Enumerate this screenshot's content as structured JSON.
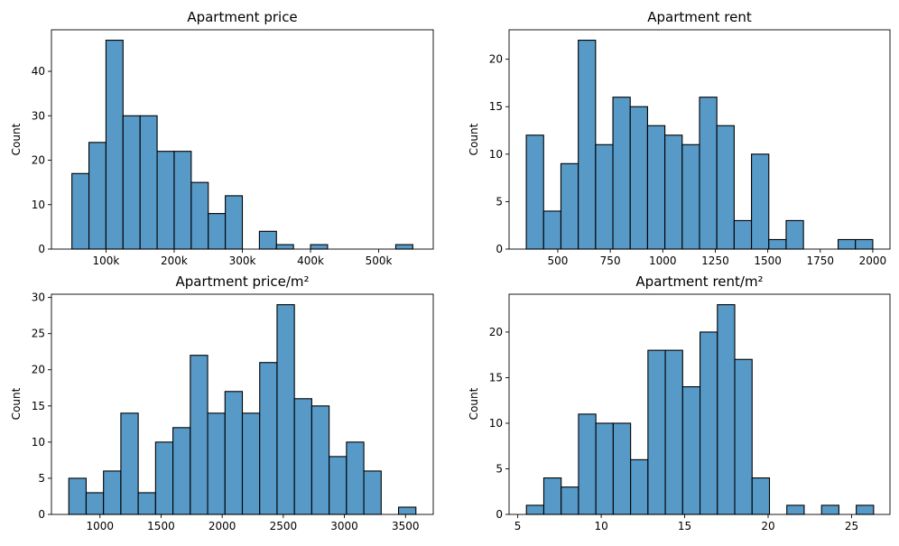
{
  "chart_data": [
    {
      "type": "bar",
      "title": "Apartment price",
      "xlabel": "",
      "ylabel": "Count",
      "xlim": [
        20000,
        580000
      ],
      "ylim": [
        0,
        49.35
      ],
      "xticks": [
        100000,
        200000,
        300000,
        400000,
        500000
      ],
      "xtick_labels": [
        "100k",
        "200k",
        "300k",
        "400k",
        "500k"
      ],
      "yticks": [
        0,
        10,
        20,
        30,
        40
      ],
      "bar_color": "#5799c7",
      "bins": [
        {
          "x0": 50000,
          "x1": 75000,
          "count": 17
        },
        {
          "x0": 75000,
          "x1": 100000,
          "count": 24
        },
        {
          "x0": 100000,
          "x1": 125000,
          "count": 47
        },
        {
          "x0": 125000,
          "x1": 150000,
          "count": 30
        },
        {
          "x0": 150000,
          "x1": 175000,
          "count": 30
        },
        {
          "x0": 175000,
          "x1": 200000,
          "count": 22
        },
        {
          "x0": 200000,
          "x1": 225000,
          "count": 22
        },
        {
          "x0": 225000,
          "x1": 250000,
          "count": 15
        },
        {
          "x0": 250000,
          "x1": 275000,
          "count": 8
        },
        {
          "x0": 275000,
          "x1": 300000,
          "count": 12
        },
        {
          "x0": 300000,
          "x1": 325000,
          "count": 0
        },
        {
          "x0": 325000,
          "x1": 350000,
          "count": 4
        },
        {
          "x0": 350000,
          "x1": 375000,
          "count": 1
        },
        {
          "x0": 375000,
          "x1": 400000,
          "count": 0
        },
        {
          "x0": 400000,
          "x1": 425000,
          "count": 1
        },
        {
          "x0": 425000,
          "x1": 450000,
          "count": 0
        },
        {
          "x0": 450000,
          "x1": 475000,
          "count": 0
        },
        {
          "x0": 475000,
          "x1": 500000,
          "count": 0
        },
        {
          "x0": 500000,
          "x1": 525000,
          "count": 0
        },
        {
          "x0": 525000,
          "x1": 550000,
          "count": 1
        }
      ]
    },
    {
      "type": "bar",
      "title": "Apartment rent",
      "xlabel": "",
      "ylabel": "Count",
      "xlim": [
        268,
        2082
      ],
      "ylim": [
        0,
        23.1
      ],
      "xticks": [
        500,
        750,
        1000,
        1250,
        1500,
        1750,
        2000
      ],
      "xtick_labels": [
        "500",
        "750",
        "1000",
        "1250",
        "1500",
        "1750",
        "2000"
      ],
      "yticks": [
        0,
        5,
        10,
        15,
        20
      ],
      "bar_color": "#5799c7",
      "bins": [
        {
          "x0": 350,
          "x1": 432.5,
          "count": 12
        },
        {
          "x0": 432.5,
          "x1": 515,
          "count": 4
        },
        {
          "x0": 515,
          "x1": 597.5,
          "count": 9
        },
        {
          "x0": 597.5,
          "x1": 680,
          "count": 22
        },
        {
          "x0": 680,
          "x1": 762.5,
          "count": 11
        },
        {
          "x0": 762.5,
          "x1": 845,
          "count": 16
        },
        {
          "x0": 845,
          "x1": 927.5,
          "count": 15
        },
        {
          "x0": 927.5,
          "x1": 1010,
          "count": 13
        },
        {
          "x0": 1010,
          "x1": 1092.5,
          "count": 12
        },
        {
          "x0": 1092.5,
          "x1": 1175,
          "count": 11
        },
        {
          "x0": 1175,
          "x1": 1257.5,
          "count": 16
        },
        {
          "x0": 1257.5,
          "x1": 1340,
          "count": 13
        },
        {
          "x0": 1340,
          "x1": 1422.5,
          "count": 3
        },
        {
          "x0": 1422.5,
          "x1": 1505,
          "count": 10
        },
        {
          "x0": 1505,
          "x1": 1587.5,
          "count": 1
        },
        {
          "x0": 1587.5,
          "x1": 1670,
          "count": 3
        },
        {
          "x0": 1670,
          "x1": 1752.5,
          "count": 0
        },
        {
          "x0": 1752.5,
          "x1": 1835,
          "count": 0
        },
        {
          "x0": 1835,
          "x1": 1917.5,
          "count": 1
        },
        {
          "x0": 1917.5,
          "x1": 2000,
          "count": 1
        }
      ]
    },
    {
      "type": "bar",
      "title": "Apartment price/m²",
      "xlabel": "",
      "ylabel": "Count",
      "xlim": [
        603,
        3727
      ],
      "ylim": [
        0,
        30.45
      ],
      "xticks": [
        1000,
        1500,
        2000,
        2500,
        3000,
        3500
      ],
      "xtick_labels": [
        "1000",
        "1500",
        "2000",
        "2500",
        "3000",
        "3500"
      ],
      "yticks": [
        0,
        5,
        10,
        15,
        20,
        25,
        30
      ],
      "bar_color": "#5799c7",
      "bins": [
        {
          "x0": 745,
          "x1": 887,
          "count": 5
        },
        {
          "x0": 887,
          "x1": 1029,
          "count": 3
        },
        {
          "x0": 1029,
          "x1": 1171,
          "count": 6
        },
        {
          "x0": 1171,
          "x1": 1313,
          "count": 14
        },
        {
          "x0": 1313,
          "x1": 1455,
          "count": 3
        },
        {
          "x0": 1455,
          "x1": 1597,
          "count": 10
        },
        {
          "x0": 1597,
          "x1": 1739,
          "count": 12
        },
        {
          "x0": 1739,
          "x1": 1881,
          "count": 22
        },
        {
          "x0": 1881,
          "x1": 2023,
          "count": 14
        },
        {
          "x0": 2023,
          "x1": 2165,
          "count": 17
        },
        {
          "x0": 2165,
          "x1": 2307,
          "count": 14
        },
        {
          "x0": 2307,
          "x1": 2449,
          "count": 21
        },
        {
          "x0": 2449,
          "x1": 2591,
          "count": 29
        },
        {
          "x0": 2591,
          "x1": 2733,
          "count": 16
        },
        {
          "x0": 2733,
          "x1": 2875,
          "count": 15
        },
        {
          "x0": 2875,
          "x1": 3017,
          "count": 8
        },
        {
          "x0": 3017,
          "x1": 3159,
          "count": 10
        },
        {
          "x0": 3159,
          "x1": 3301,
          "count": 6
        },
        {
          "x0": 3301,
          "x1": 3443,
          "count": 0
        },
        {
          "x0": 3443,
          "x1": 3585,
          "count": 1
        }
      ]
    },
    {
      "type": "bar",
      "title": "Apartment rent/m²",
      "xlabel": "",
      "ylabel": "Count",
      "xlim": [
        4.48,
        27.3
      ],
      "ylim": [
        0,
        24.15
      ],
      "xticks": [
        5,
        10,
        15,
        20,
        25
      ],
      "xtick_labels": [
        "5",
        "10",
        "15",
        "20",
        "25"
      ],
      "yticks": [
        0,
        5,
        10,
        15,
        20
      ],
      "bar_color": "#5799c7",
      "bins": [
        {
          "x0": 5.52,
          "x1": 6.56,
          "count": 1
        },
        {
          "x0": 6.56,
          "x1": 7.6,
          "count": 4
        },
        {
          "x0": 7.6,
          "x1": 8.64,
          "count": 3
        },
        {
          "x0": 8.64,
          "x1": 9.68,
          "count": 11
        },
        {
          "x0": 9.68,
          "x1": 10.72,
          "count": 10
        },
        {
          "x0": 10.72,
          "x1": 11.76,
          "count": 10
        },
        {
          "x0": 11.76,
          "x1": 12.8,
          "count": 6
        },
        {
          "x0": 12.8,
          "x1": 13.84,
          "count": 18
        },
        {
          "x0": 13.84,
          "x1": 14.88,
          "count": 18
        },
        {
          "x0": 14.88,
          "x1": 15.92,
          "count": 14
        },
        {
          "x0": 15.92,
          "x1": 16.96,
          "count": 20
        },
        {
          "x0": 16.96,
          "x1": 18.0,
          "count": 23
        },
        {
          "x0": 18.0,
          "x1": 19.04,
          "count": 17
        },
        {
          "x0": 19.04,
          "x1": 20.08,
          "count": 4
        },
        {
          "x0": 20.08,
          "x1": 21.12,
          "count": 0
        },
        {
          "x0": 21.12,
          "x1": 22.16,
          "count": 1
        },
        {
          "x0": 22.16,
          "x1": 23.2,
          "count": 0
        },
        {
          "x0": 23.2,
          "x1": 24.24,
          "count": 1
        },
        {
          "x0": 24.24,
          "x1": 25.28,
          "count": 0
        },
        {
          "x0": 25.28,
          "x1": 26.32,
          "count": 1
        }
      ]
    }
  ]
}
